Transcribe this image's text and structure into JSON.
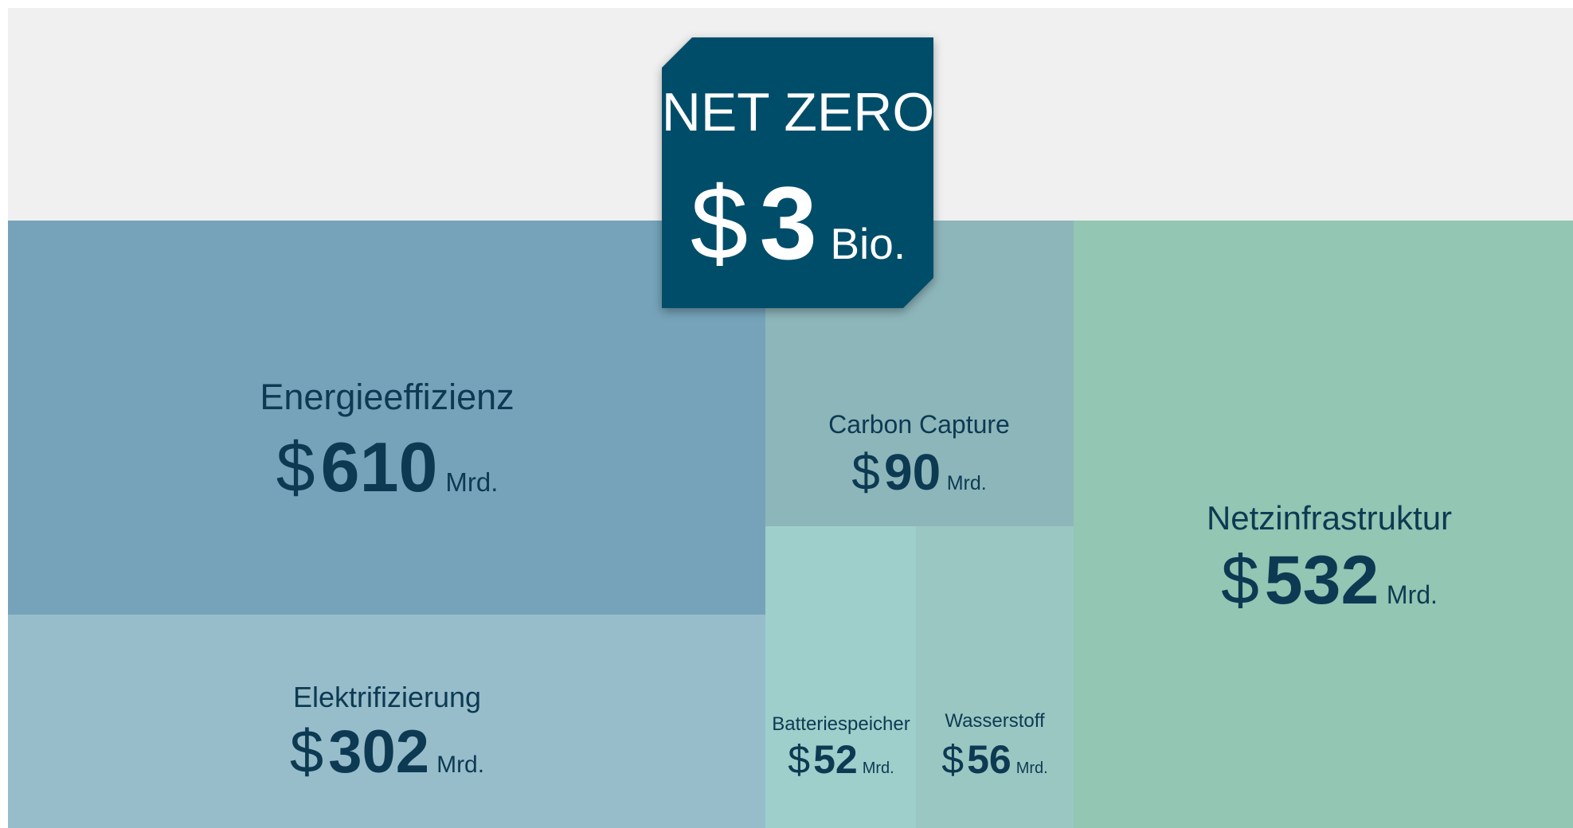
{
  "chart_data": {
    "type": "treemap",
    "title": "NET ZERO",
    "total": {
      "currency": "$",
      "value": 3,
      "unit": "Bio."
    },
    "currency": "$",
    "unit": "Mrd.",
    "categories": [
      "Energieeffizienz",
      "Elektrifizierung",
      "Carbon Capture",
      "Batteriespeicher",
      "Wasserstoff",
      "Netzinfrastruktur"
    ],
    "values": [
      610,
      302,
      90,
      52,
      56,
      532
    ],
    "colors": [
      "#76a3ba",
      "#97bdcb",
      "#8db6bb",
      "#9ecfcb",
      "#9bc7c3",
      "#93c6b3"
    ]
  }
}
